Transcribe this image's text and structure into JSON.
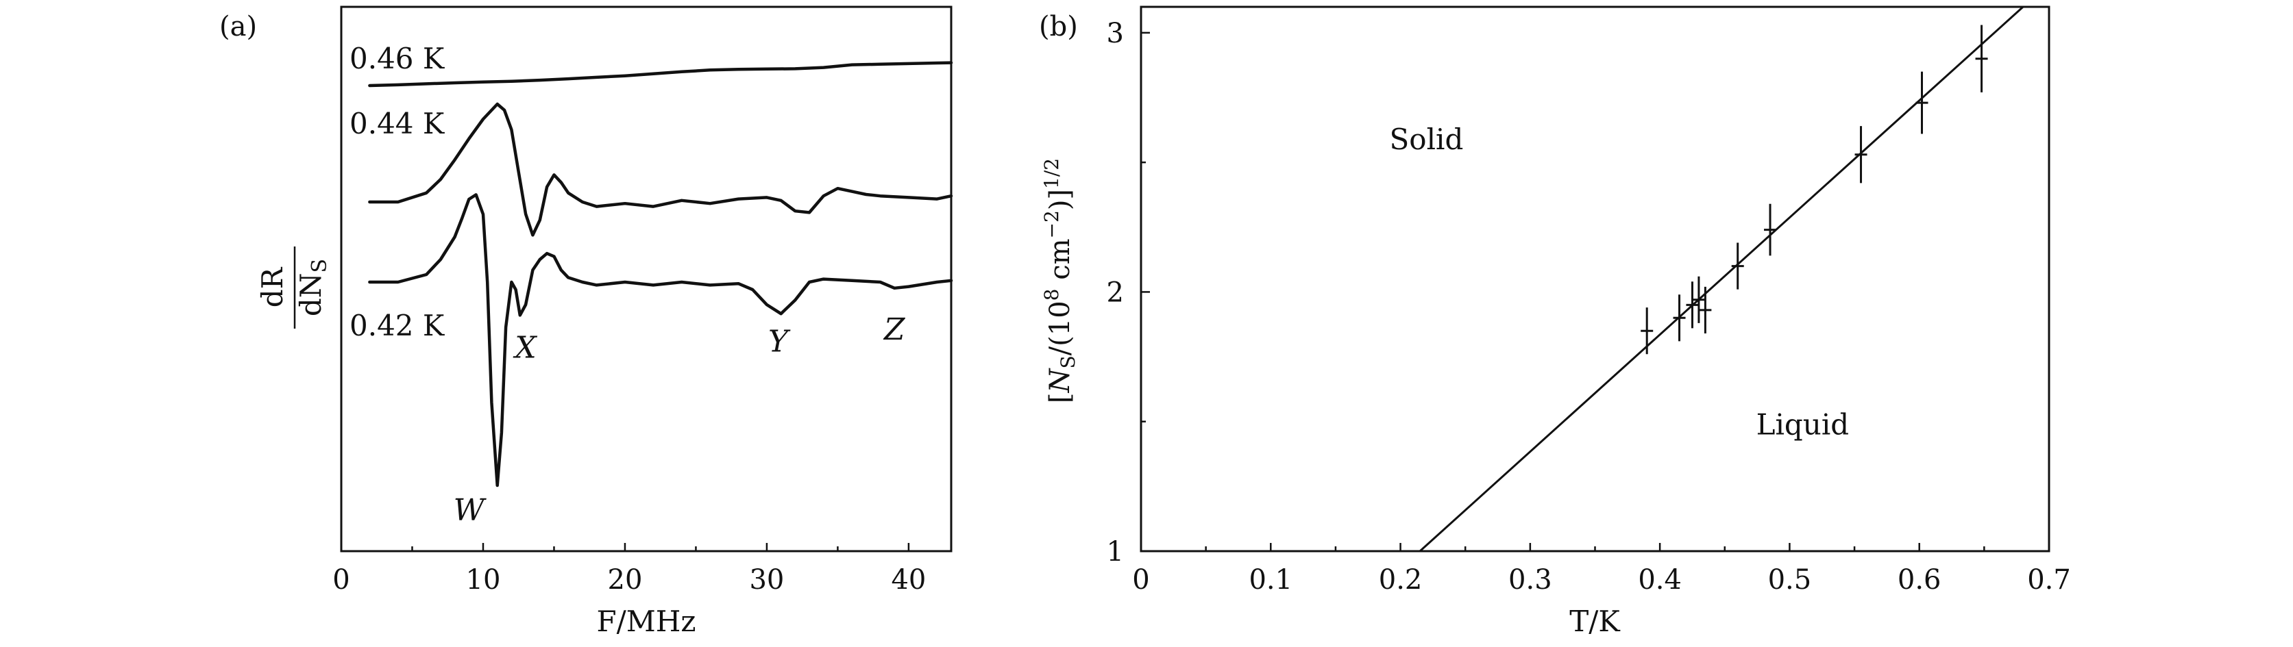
{
  "chart_data": [
    {
      "type": "line",
      "panel_label": "(a)",
      "xlabel": "F/MHz",
      "ylabel_top": "dR",
      "ylabel_bottom": "dN_S",
      "xlim": [
        0,
        43
      ],
      "xticks": [
        "0",
        "10",
        "20",
        "30",
        "40"
      ],
      "series": [
        {
          "name": "0.46 K",
          "x": [
            2,
            4,
            6,
            8,
            10,
            12,
            14,
            16,
            18,
            20,
            22,
            24,
            26,
            28,
            30,
            32,
            34,
            36,
            38,
            40,
            42,
            43
          ],
          "y": [
            0.0,
            0.05,
            0.12,
            0.18,
            0.24,
            0.28,
            0.36,
            0.45,
            0.55,
            0.65,
            0.78,
            0.92,
            1.03,
            1.08,
            1.1,
            1.12,
            1.2,
            1.38,
            1.42,
            1.46,
            1.5,
            1.52
          ]
        },
        {
          "name": "0.44 K",
          "x": [
            2,
            4,
            6,
            7,
            8,
            9,
            10,
            11,
            11.5,
            12,
            12.5,
            13,
            13.5,
            14,
            14.5,
            15,
            15.5,
            16,
            17,
            18,
            20,
            22,
            24,
            26,
            28,
            30,
            31,
            32,
            33,
            34,
            35,
            36,
            37,
            38,
            40,
            42,
            43
          ],
          "y": [
            0.0,
            0.0,
            0.6,
            1.5,
            2.8,
            4.2,
            5.5,
            6.5,
            6.1,
            4.8,
            2.0,
            -0.8,
            -2.2,
            -1.2,
            1.0,
            1.8,
            1.3,
            0.6,
            0.0,
            -0.3,
            -0.1,
            -0.3,
            0.1,
            -0.1,
            0.2,
            0.3,
            0.1,
            -0.6,
            -0.7,
            0.4,
            0.9,
            0.7,
            0.5,
            0.4,
            0.3,
            0.2,
            0.4
          ]
        },
        {
          "name": "0.42 K",
          "x": [
            2,
            4,
            6,
            7,
            8,
            8.5,
            9,
            9.5,
            10,
            10.3,
            10.6,
            11,
            11.3,
            11.6,
            12,
            12.3,
            12.6,
            13,
            13.5,
            14,
            14.5,
            15,
            15.5,
            16,
            17,
            18,
            20,
            22,
            24,
            26,
            28,
            29,
            30,
            31,
            32,
            33,
            34,
            36,
            38,
            39,
            40,
            42,
            43
          ],
          "y": [
            0.0,
            0.0,
            0.5,
            1.5,
            3.0,
            4.2,
            5.5,
            5.8,
            4.5,
            0.0,
            -8.0,
            -13.5,
            -10.0,
            -3.0,
            0.0,
            -0.5,
            -2.2,
            -1.5,
            0.8,
            1.5,
            1.9,
            1.7,
            0.8,
            0.3,
            0.0,
            -0.2,
            0.0,
            -0.2,
            0.0,
            -0.2,
            -0.1,
            -0.5,
            -1.5,
            -2.1,
            -1.2,
            0.0,
            0.2,
            0.1,
            0.0,
            -0.4,
            -0.3,
            0.0,
            0.1
          ]
        }
      ],
      "annotations": [
        {
          "text": "W",
          "x": 9.0,
          "y": -14.0
        },
        {
          "text": "X",
          "x": 13.0,
          "y": -3.2
        },
        {
          "text": "Y",
          "x": 30.8,
          "y": -2.8
        },
        {
          "text": "Z",
          "x": 39.0,
          "y": -2.0
        }
      ]
    },
    {
      "type": "scatter",
      "panel_label": "(b)",
      "xlabel": "T/K",
      "ylabel": "[N_S/(10^8 cm^-2)]^1/2",
      "xlim": [
        0,
        0.7
      ],
      "ylim": [
        1,
        3.1
      ],
      "xticks": [
        "0",
        "0.1",
        "0.2",
        "0.3",
        "0.4",
        "0.5",
        "0.6",
        "0.7"
      ],
      "yticks": [
        "1",
        "2",
        "3"
      ],
      "points": {
        "x": [
          0.39,
          0.415,
          0.425,
          0.43,
          0.435,
          0.46,
          0.485,
          0.555,
          0.602,
          0.648
        ],
        "y": [
          1.85,
          1.9,
          1.95,
          1.97,
          1.93,
          2.1,
          2.24,
          2.53,
          2.73,
          2.9
        ],
        "yerr": [
          0.09,
          0.09,
          0.09,
          0.09,
          0.09,
          0.09,
          0.1,
          0.11,
          0.12,
          0.13
        ]
      },
      "fit_line": {
        "x": [
          0.215,
          0.68
        ],
        "y": [
          1.0,
          3.1
        ]
      },
      "region_labels": [
        {
          "text": "Solid",
          "x": 0.22,
          "y": 2.55
        },
        {
          "text": "Liquid",
          "x": 0.51,
          "y": 1.45
        }
      ]
    }
  ]
}
